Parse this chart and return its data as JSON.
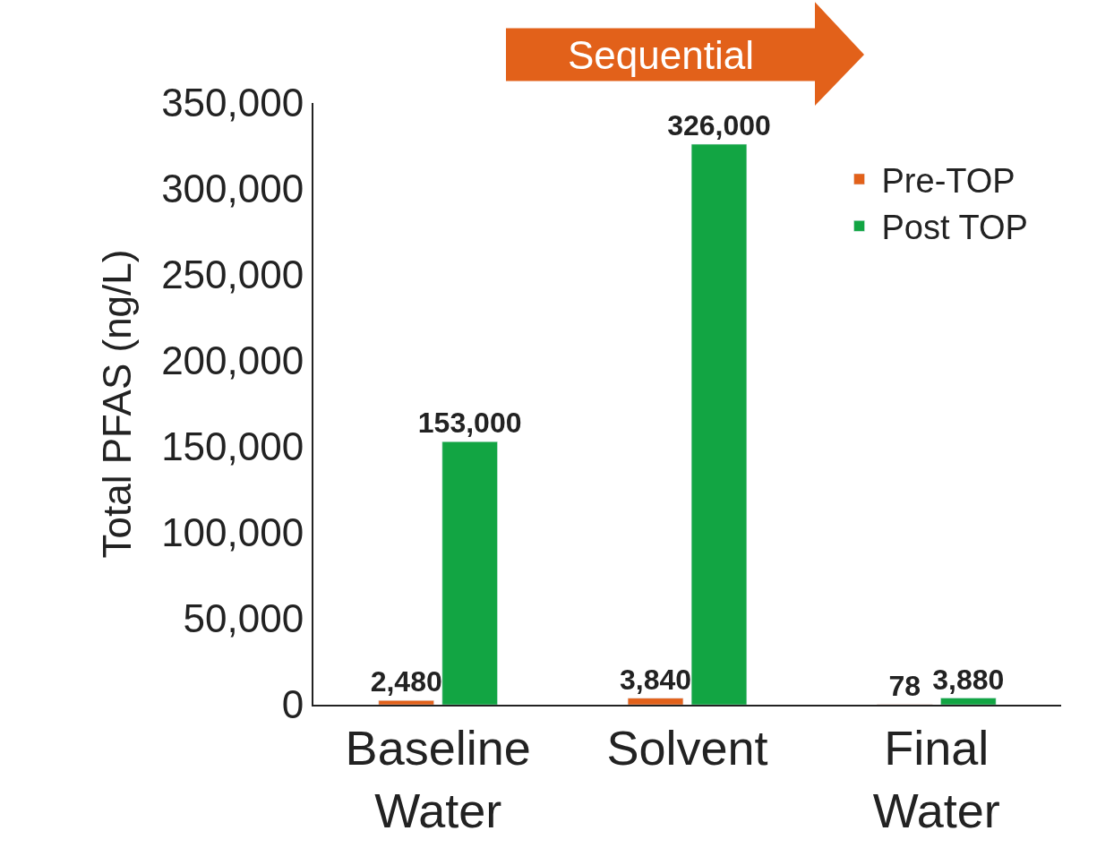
{
  "chart_data": {
    "type": "bar",
    "ylabel": "Total PFAS (ng/L)",
    "categories": [
      "Baseline Water",
      "Solvent",
      "Final Water"
    ],
    "series": [
      {
        "name": "Pre-TOP",
        "color": "#e2611a",
        "values": [
          2480,
          3840,
          78
        ],
        "value_labels": [
          "2,480",
          "3,840",
          "78"
        ]
      },
      {
        "name": "Post TOP",
        "color": "#12a543",
        "values": [
          153000,
          326000,
          3880
        ],
        "value_labels": [
          "153,000",
          "326,000",
          "3,880"
        ]
      }
    ],
    "ylim": [
      0,
      350000
    ],
    "yticks": [
      {
        "value": 0,
        "label": "0"
      },
      {
        "value": 50000,
        "label": "50,000"
      },
      {
        "value": 100000,
        "label": "100,000"
      },
      {
        "value": 150000,
        "label": "150,000"
      },
      {
        "value": 200000,
        "label": "200,000"
      },
      {
        "value": 250000,
        "label": "250,000"
      },
      {
        "value": 300000,
        "label": "300,000"
      },
      {
        "value": 350000,
        "label": "350,000"
      }
    ],
    "legend": "top right",
    "annotations": [
      "Sequential"
    ]
  }
}
